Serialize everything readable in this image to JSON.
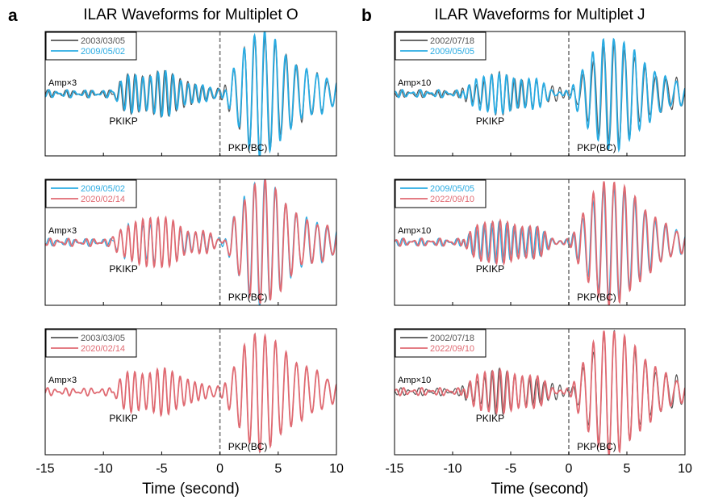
{
  "chart_data": [
    {
      "type": "line",
      "panel": "a",
      "title": "ILAR Waveforms for Multiplet O",
      "xlabel": "Time (second)",
      "ylabel": "",
      "xlim": [
        -15,
        10
      ],
      "xticks": [
        -15,
        -10,
        -5,
        0,
        5,
        10
      ],
      "reference_line_x": 0,
      "subplots": [
        {
          "amp_label": "Amp×3",
          "annotations": [
            "PKIKP",
            "PKP(BC)"
          ],
          "series": [
            {
              "name": "2003/03/05",
              "color": "#555555",
              "seed": 1,
              "pkikp_amp": 0.38,
              "bc_amp": 1.0,
              "phase": 0.0
            },
            {
              "name": "2009/05/02",
              "color": "#29abe2",
              "seed": 2,
              "pkikp_amp": 0.36,
              "bc_amp": 1.05,
              "phase": 0.15
            }
          ]
        },
        {
          "amp_label": "Amp×3",
          "annotations": [
            "PKIKP",
            "PKP(BC)"
          ],
          "series": [
            {
              "name": "2009/05/02",
              "color": "#29abe2",
              "seed": 2,
              "pkikp_amp": 0.36,
              "bc_amp": 1.05,
              "phase": 0.15
            },
            {
              "name": "2020/02/14",
              "color": "#e06a72",
              "seed": 3,
              "pkikp_amp": 0.42,
              "bc_amp": 1.02,
              "phase": 0.05
            }
          ]
        },
        {
          "amp_label": "Amp×3",
          "annotations": [
            "PKIKP",
            "PKP(BC)"
          ],
          "series": [
            {
              "name": "2003/03/05",
              "color": "#555555",
              "seed": 1,
              "pkikp_amp": 0.38,
              "bc_amp": 1.0,
              "phase": 0.0
            },
            {
              "name": "2020/02/14",
              "color": "#e06a72",
              "seed": 1,
              "pkikp_amp": 0.38,
              "bc_amp": 1.0,
              "phase": 0.02
            }
          ]
        }
      ]
    },
    {
      "type": "line",
      "panel": "b",
      "title": "ILAR Waveforms for Multiplet J",
      "xlabel": "Time (second)",
      "ylabel": "",
      "xlim": [
        -15,
        10
      ],
      "xticks": [
        -15,
        -10,
        -5,
        0,
        5,
        10
      ],
      "reference_line_x": 0,
      "subplots": [
        {
          "amp_label": "Amp×10",
          "annotations": [
            "PKIKP",
            "PKP(BC)"
          ],
          "series": [
            {
              "name": "2002/07/18",
              "color": "#555555",
              "seed": 4,
              "pkikp_amp": 0.32,
              "bc_amp": 0.85,
              "phase": 0.0
            },
            {
              "name": "2009/05/05",
              "color": "#29abe2",
              "seed": 5,
              "pkikp_amp": 0.33,
              "bc_amp": 1.0,
              "phase": 0.2
            }
          ]
        },
        {
          "amp_label": "Amp×10",
          "annotations": [
            "PKIKP",
            "PKP(BC)"
          ],
          "series": [
            {
              "name": "2009/05/05",
              "color": "#29abe2",
              "seed": 5,
              "pkikp_amp": 0.33,
              "bc_amp": 1.0,
              "phase": 0.2
            },
            {
              "name": "2022/09/10",
              "color": "#e06a72",
              "seed": 6,
              "pkikp_amp": 0.36,
              "bc_amp": 1.1,
              "phase": 0.05
            }
          ]
        },
        {
          "amp_label": "Amp×10",
          "annotations": [
            "PKIKP",
            "PKP(BC)"
          ],
          "series": [
            {
              "name": "2002/07/18",
              "color": "#555555",
              "seed": 4,
              "pkikp_amp": 0.34,
              "bc_amp": 1.0,
              "phase": 0.0
            },
            {
              "name": "2022/09/10",
              "color": "#e06a72",
              "seed": 6,
              "pkikp_amp": 0.36,
              "bc_amp": 1.1,
              "phase": 0.05
            }
          ]
        }
      ]
    }
  ]
}
